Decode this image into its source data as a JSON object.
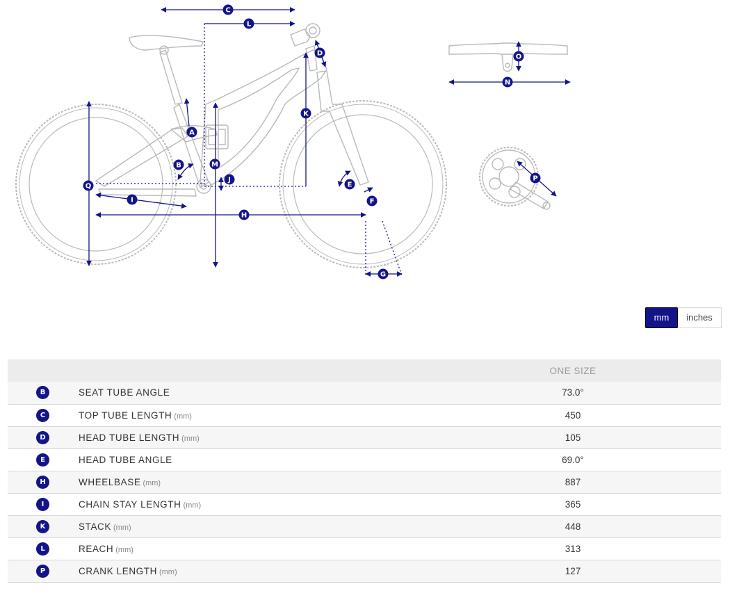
{
  "colors": {
    "accent": "#14148a",
    "line": "#b9b9b9",
    "header_bg": "#ececec"
  },
  "diagram": {
    "labels": {
      "A": "A",
      "B": "B",
      "C": "C",
      "D": "D",
      "E": "E",
      "F": "F",
      "G": "G",
      "H": "H",
      "I": "I",
      "J": "J",
      "K": "K",
      "L": "L",
      "M": "M",
      "N": "N",
      "O": "O",
      "P": "P",
      "Q": "Q"
    }
  },
  "units": {
    "mm": "mm",
    "inches": "inches",
    "selected": "mm"
  },
  "table": {
    "size_header": "ONE SIZE",
    "rows": [
      {
        "letter": "B",
        "name": "SEAT TUBE ANGLE",
        "unit": "",
        "value": "73.0°"
      },
      {
        "letter": "C",
        "name": "TOP TUBE LENGTH",
        "unit": "(mm)",
        "value": "450"
      },
      {
        "letter": "D",
        "name": "HEAD TUBE LENGTH",
        "unit": "(mm)",
        "value": "105"
      },
      {
        "letter": "E",
        "name": "HEAD TUBE ANGLE",
        "unit": "",
        "value": "69.0°"
      },
      {
        "letter": "H",
        "name": "WHEELBASE",
        "unit": "(mm)",
        "value": "887"
      },
      {
        "letter": "I",
        "name": "CHAIN STAY LENGTH",
        "unit": "(mm)",
        "value": "365"
      },
      {
        "letter": "K",
        "name": "STACK",
        "unit": "(mm)",
        "value": "448"
      },
      {
        "letter": "L",
        "name": "REACH",
        "unit": "(mm)",
        "value": "313"
      },
      {
        "letter": "P",
        "name": "CRANK LENGTH",
        "unit": "(mm)",
        "value": "127"
      }
    ]
  }
}
